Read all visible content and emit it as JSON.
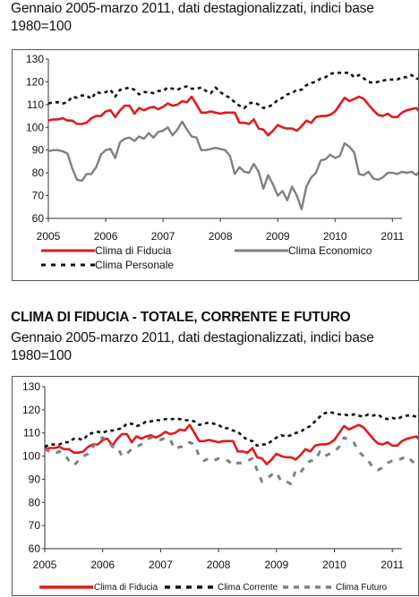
{
  "chart1": {
    "subtitle": "Gennaio 2005-marzo 2011, dati destagionalizzati, indici base 1980=100"
  },
  "chart2": {
    "title": "CLIMA DI FIDUCIA - TOTALE, CORRENTE E FUTURO",
    "subtitle": "Gennaio 2005-marzo 2011, dati destagionalizzati, indici base 1980=100"
  },
  "colors": {
    "red": "#e31a1c",
    "gray": "#808080",
    "black": "#111111"
  },
  "chart_data": [
    {
      "type": "line",
      "title": "",
      "xlabel": "",
      "ylabel": "",
      "x_start": "2005-01",
      "x_end": "2011-03",
      "x_ticks": [
        "2005",
        "2006",
        "2007",
        "2008",
        "2009",
        "2010",
        "2011"
      ],
      "ylim": [
        60,
        130
      ],
      "y_ticks": [
        60,
        70,
        80,
        90,
        100,
        110,
        120,
        130
      ],
      "grid": false,
      "legend": "bottom",
      "series": [
        {
          "name": "Clima di Fiducia",
          "style": "solid",
          "color": "#e31a1c",
          "values": [
            103,
            103.5,
            103.5,
            104,
            103,
            103,
            101.5,
            101.5,
            102,
            104,
            105,
            105,
            107,
            107.5,
            104.5,
            107.5,
            109.5,
            109.5,
            106,
            108.5,
            107.5,
            108.5,
            109,
            108,
            109,
            110.5,
            109.5,
            110,
            111.5,
            111,
            113.5,
            110,
            106.5,
            106.5,
            107,
            106.5,
            106,
            106.5,
            106.5,
            106.5,
            102,
            102,
            101.5,
            103.5,
            99.5,
            99,
            96.5,
            98.5,
            101,
            100,
            99.5,
            99.5,
            98.5,
            100.5,
            103,
            102,
            104.5,
            105,
            105,
            105.5,
            107,
            110,
            113,
            111.5,
            112.5,
            113.5,
            112.5,
            110,
            107.5,
            105.5,
            105,
            106,
            104.5,
            104.5,
            106.5,
            107.5,
            108,
            108.5,
            106,
            105.5,
            105
          ]
        },
        {
          "name": "Clima Economico",
          "style": "solid",
          "color": "#808080",
          "values": [
            89.5,
            90,
            90,
            89.5,
            88.5,
            82,
            77,
            76.5,
            79.5,
            79.5,
            82.5,
            88,
            90,
            90.5,
            86.5,
            93.5,
            95,
            95.5,
            94,
            96,
            95,
            97.5,
            95.5,
            98,
            98.5,
            100,
            96.5,
            99,
            102.5,
            99,
            96,
            95.5,
            90,
            90,
            90.5,
            91,
            90.5,
            90,
            87.5,
            79.5,
            82.5,
            80.5,
            80,
            84,
            80.5,
            73,
            79,
            75,
            70,
            72,
            68,
            74,
            70,
            64,
            74,
            78,
            80,
            85.5,
            86,
            88,
            86.5,
            87.5,
            93,
            91.5,
            89,
            79.5,
            79,
            80.5,
            77.5,
            77,
            78,
            80,
            80,
            79.5,
            80.5,
            80,
            80.5,
            79,
            81.5,
            77.5,
            76
          ]
        },
        {
          "name": "Clima Personale",
          "style": "dashed",
          "color": "#111111",
          "values": [
            110.5,
            111,
            111,
            110.5,
            111,
            113.5,
            113,
            114,
            114,
            112.5,
            115.5,
            115,
            115.5,
            116.5,
            113.5,
            116.5,
            117,
            117.5,
            116.5,
            114.5,
            115.5,
            115.5,
            115,
            116,
            116,
            117.5,
            117,
            116.5,
            117.5,
            118,
            117,
            117,
            117.5,
            116,
            115,
            117.5,
            115.5,
            114,
            113,
            111,
            109.5,
            108.5,
            110.5,
            111,
            110,
            108.5,
            109,
            110,
            112,
            113,
            114.5,
            115,
            116.5,
            116.5,
            118.5,
            119.5,
            120,
            121.5,
            122,
            123.5,
            124,
            124,
            124,
            124,
            122,
            123,
            121.5,
            120,
            119.5,
            120,
            120.5,
            121,
            121,
            121,
            122,
            122,
            123,
            121.5,
            121,
            120,
            120
          ]
        }
      ]
    },
    {
      "type": "line",
      "title": "CLIMA DI FIDUCIA - TOTALE, CORRENTE E FUTURO",
      "xlabel": "",
      "ylabel": "",
      "x_start": "2005-01",
      "x_end": "2011-03",
      "x_ticks": [
        "2005",
        "2006",
        "2007",
        "2008",
        "2009",
        "2010",
        "2011"
      ],
      "ylim": [
        60,
        130
      ],
      "y_ticks": [
        60,
        70,
        80,
        90,
        100,
        110,
        120,
        130
      ],
      "grid": false,
      "legend": "bottom",
      "series": [
        {
          "name": "Clima di Fiducia",
          "style": "solid",
          "color": "#e31a1c",
          "values": [
            103,
            103.5,
            103.5,
            104,
            103,
            103,
            101.5,
            101.5,
            102,
            104,
            105,
            105,
            107,
            107.5,
            104.5,
            107.5,
            109.5,
            109.5,
            106,
            108.5,
            107.5,
            108.5,
            109,
            108,
            109,
            110.5,
            109.5,
            110,
            111.5,
            111,
            113.5,
            110,
            106.5,
            106.5,
            107,
            106.5,
            106,
            106.5,
            106.5,
            106.5,
            102,
            102,
            101.5,
            103.5,
            99.5,
            99,
            96.5,
            98.5,
            101,
            100,
            99.5,
            99.5,
            98.5,
            100.5,
            103,
            102,
            104.5,
            105,
            105,
            105.5,
            107,
            110,
            113,
            111.5,
            112.5,
            113.5,
            112.5,
            110,
            107.5,
            105.5,
            105,
            106,
            104.5,
            104.5,
            106.5,
            107.5,
            108,
            108.5,
            106,
            105.5,
            105
          ]
        },
        {
          "name": "Clima Corrente",
          "style": "dashed",
          "color": "#111111",
          "values": [
            104,
            105,
            105,
            105,
            106,
            106,
            107.5,
            107.5,
            107,
            109.5,
            110,
            110.5,
            110,
            111,
            111,
            111.5,
            112,
            114,
            114,
            113,
            113.5,
            115,
            115,
            115.5,
            115.5,
            116,
            116,
            116,
            116,
            115.5,
            115.5,
            115,
            113.5,
            114,
            114.5,
            114,
            113.5,
            112,
            112,
            111,
            110.5,
            108.5,
            107,
            106.5,
            104.5,
            105,
            105,
            106.5,
            108,
            109,
            108.5,
            109,
            110,
            110.5,
            112,
            113,
            115,
            117,
            118.5,
            119,
            118.5,
            118,
            118,
            117.5,
            118,
            117.5,
            117,
            118,
            117.5,
            118,
            116.5,
            116,
            116.5,
            116,
            117,
            117.5,
            117.5,
            117,
            117.5,
            115,
            114
          ]
        },
        {
          "name": "Clima Futuro",
          "style": "dashed-thick",
          "color": "#808080",
          "values": [
            103,
            102,
            101,
            102,
            101,
            98,
            96,
            98,
            100,
            101,
            104,
            107,
            108,
            107,
            104,
            104,
            100,
            101,
            103,
            104,
            105,
            107,
            108,
            108,
            107,
            108,
            107,
            103,
            104,
            104,
            106,
            105,
            100,
            98,
            99,
            98,
            99,
            98,
            98,
            96,
            97,
            97,
            98,
            99,
            94,
            89,
            90,
            92,
            93,
            89,
            89,
            88,
            94,
            93,
            96,
            98,
            98,
            102,
            100,
            101,
            102,
            104,
            108,
            107,
            106,
            102,
            100,
            98,
            95,
            94,
            95,
            97,
            98,
            98,
            99,
            100,
            98,
            96,
            95,
            94,
            94
          ]
        }
      ]
    }
  ],
  "legend1": {
    "fiducia": "Clima di Fiducia",
    "economico": "Clima Economico",
    "personale": "Clima Personale"
  },
  "legend2": {
    "fiducia": "Clima di Fiducia",
    "corrente": "Clima Corrente",
    "futuro": "Clima Futuro"
  }
}
